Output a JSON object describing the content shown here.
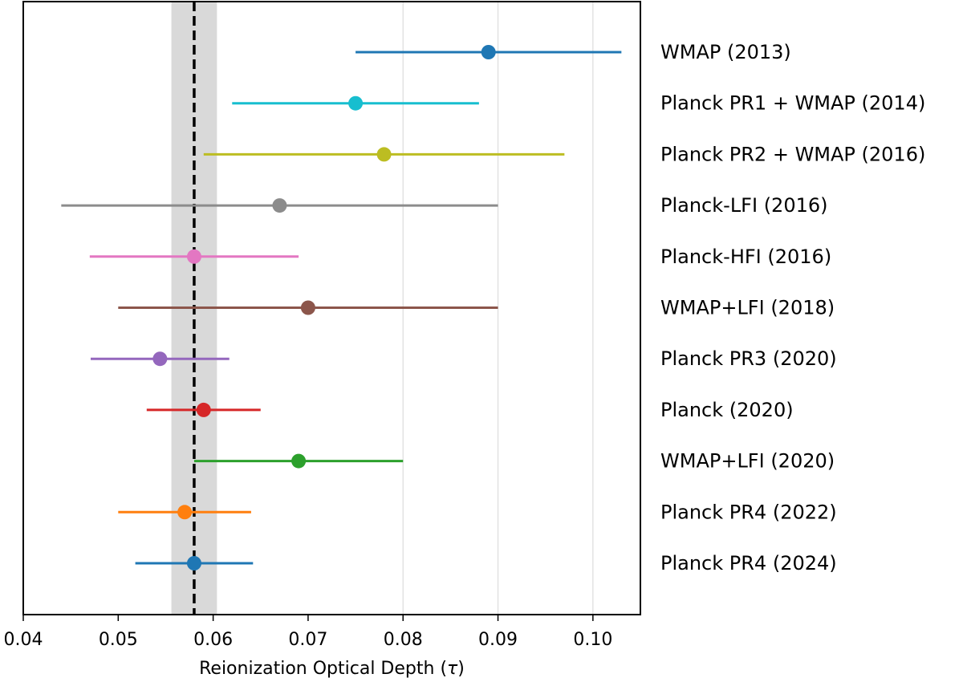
{
  "chart_data": {
    "type": "scatter",
    "subtype": "errorbar-forest",
    "title": "",
    "xlabel_prefix": "Reionization Optical Depth (",
    "xlabel_symbol": "τ",
    "xlabel_suffix": ")",
    "ylabel": "",
    "xlim": [
      0.04,
      0.105
    ],
    "xticks": [
      0.04,
      0.05,
      0.06,
      0.07,
      0.08,
      0.09,
      0.1
    ],
    "xtick_labels": [
      "0.04",
      "0.05",
      "0.06",
      "0.07",
      "0.08",
      "0.09",
      "0.10"
    ],
    "vertical_gridlines_at": [
      0.08,
      0.09,
      0.1
    ],
    "reference": {
      "value": 0.058,
      "band": [
        0.0556,
        0.0604
      ],
      "line_style": "dashed",
      "line_color": "#000000",
      "band_color": "#d9d9d9"
    },
    "measurements": [
      {
        "label": "WMAP (2013)",
        "value": 0.089,
        "lower": 0.075,
        "upper": 0.103,
        "color": "#1f77b4"
      },
      {
        "label": "Planck PR1 + WMAP (2014)",
        "value": 0.075,
        "lower": 0.062,
        "upper": 0.088,
        "color": "#17becf"
      },
      {
        "label": "Planck PR2 + WMAP (2016)",
        "value": 0.078,
        "lower": 0.059,
        "upper": 0.097,
        "color": "#bcbd22"
      },
      {
        "label": "Planck-LFI (2016)",
        "value": 0.067,
        "lower": 0.044,
        "upper": 0.09,
        "color": "#8c8c8c"
      },
      {
        "label": "Planck-HFI (2016)",
        "value": 0.058,
        "lower": 0.047,
        "upper": 0.069,
        "color": "#e377c2"
      },
      {
        "label": "WMAP+LFI (2018)",
        "value": 0.07,
        "lower": 0.05,
        "upper": 0.09,
        "color": "#8c564b"
      },
      {
        "label": "Planck PR3 (2020)",
        "value": 0.0544,
        "lower": 0.0471,
        "upper": 0.0617,
        "color": "#9467bd"
      },
      {
        "label": "Planck (2020)",
        "value": 0.059,
        "lower": 0.053,
        "upper": 0.065,
        "color": "#d62728"
      },
      {
        "label": "WMAP+LFI (2020)",
        "value": 0.069,
        "lower": 0.058,
        "upper": 0.08,
        "color": "#2ca02c"
      },
      {
        "label": "Planck PR4 (2022)",
        "value": 0.057,
        "lower": 0.05,
        "upper": 0.064,
        "color": "#ff7f0e"
      },
      {
        "label": "Planck PR4 (2024)",
        "value": 0.058,
        "lower": 0.0518,
        "upper": 0.0642,
        "color": "#1f77b4"
      }
    ]
  }
}
